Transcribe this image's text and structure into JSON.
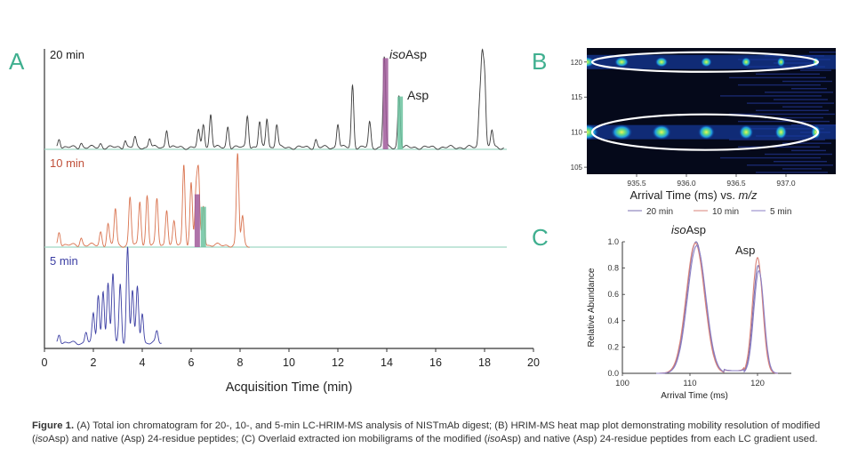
{
  "figure": {
    "panel_labels": {
      "a": "A",
      "b": "B",
      "c": "C"
    },
    "panel_a": {
      "trace_labels": [
        "20 min",
        "10 min",
        "5 min"
      ],
      "trace_colors": [
        "#3a3a3a",
        "#d9734f",
        "#3b3ea3"
      ],
      "baseline_color": "#9fd6c4",
      "peak_labels": {
        "iso_prefix": "iso",
        "iso_suffix": "Asp",
        "asp": "Asp"
      },
      "highlight_colors": {
        "isoasp": "#a05a9a",
        "asp": "#6cc3a0"
      }
    },
    "panel_b": {
      "legend": [
        "— 20 min",
        "— 10 min",
        "— 5 min"
      ]
    },
    "panel_c": {
      "peak_labels": {
        "iso_prefix": "iso",
        "iso_suffix": "Asp",
        "asp": "Asp"
      }
    },
    "caption": {
      "label": "Figure 1.",
      "parts": [
        " (A) Total ion chromatogram for 20-, 10-, and 5-min LC-HRIM-MS analysis of NISTmAb digest; (B) HRIM-MS heat map plot demonstrating mobility resolution of modified (",
        "iso",
        "Asp) and native (Asp) 24-residue peptides; (C) Overlaid extracted ion mobiligrams of the modified (",
        "iso",
        "Asp) and native (Asp) 24-residue peptides from each LC gradient used."
      ]
    }
  },
  "chart_data": [
    {
      "type": "line",
      "xlabel": "Acquisition Time (min)",
      "xlim": [
        0,
        20
      ],
      "xticks": [
        0,
        2,
        4,
        6,
        8,
        10,
        12,
        14,
        16,
        18,
        20
      ],
      "grid": false,
      "series": [
        {
          "name": "20 min",
          "x_range": [
            0.5,
            18.8
          ],
          "peaks": [
            [
              0.6,
              0.1
            ],
            [
              1.5,
              0.05
            ],
            [
              2.3,
              0.04
            ],
            [
              3.3,
              0.08
            ],
            [
              3.7,
              0.1
            ],
            [
              4.3,
              0.1
            ],
            [
              5.0,
              0.19
            ],
            [
              6.3,
              0.17
            ],
            [
              6.5,
              0.25
            ],
            [
              6.8,
              0.35
            ],
            [
              7.5,
              0.22
            ],
            [
              8.3,
              0.34
            ],
            [
              8.8,
              0.26
            ],
            [
              9.1,
              0.31
            ],
            [
              9.5,
              0.24
            ],
            [
              11.1,
              0.08
            ],
            [
              12.0,
              0.25
            ],
            [
              12.6,
              0.65
            ],
            [
              13.3,
              0.26
            ],
            [
              13.9,
              0.95
            ],
            [
              14.5,
              0.55
            ],
            [
              17.8,
              0.44
            ],
            [
              17.9,
              0.88
            ],
            [
              18.0,
              0.72
            ],
            [
              18.3,
              0.18
            ]
          ]
        },
        {
          "name": "10 min",
          "x_range": [
            0.5,
            8.4
          ],
          "peaks": [
            [
              0.6,
              0.15
            ],
            [
              1.5,
              0.08
            ],
            [
              2.3,
              0.14
            ],
            [
              2.6,
              0.22
            ],
            [
              2.9,
              0.38
            ],
            [
              3.5,
              0.5
            ],
            [
              3.9,
              0.46
            ],
            [
              4.2,
              0.52
            ],
            [
              4.6,
              0.48
            ],
            [
              5.0,
              0.38
            ],
            [
              5.3,
              0.24
            ],
            [
              5.7,
              0.85
            ],
            [
              6.0,
              0.65
            ],
            [
              6.2,
              0.55
            ],
            [
              6.3,
              0.72
            ],
            [
              6.5,
              0.42
            ],
            [
              7.9,
              0.95
            ],
            [
              8.1,
              0.3
            ]
          ]
        },
        {
          "name": "5 min",
          "x_range": [
            0.5,
            4.8
          ],
          "peaks": [
            [
              0.6,
              0.1
            ],
            [
              1.7,
              0.12
            ],
            [
              2.0,
              0.3
            ],
            [
              2.2,
              0.5
            ],
            [
              2.4,
              0.55
            ],
            [
              2.6,
              0.62
            ],
            [
              2.8,
              0.72
            ],
            [
              3.1,
              0.62
            ],
            [
              3.4,
              1.0
            ],
            [
              3.6,
              0.55
            ],
            [
              3.8,
              0.58
            ],
            [
              4.0,
              0.32
            ],
            [
              4.6,
              0.12
            ]
          ]
        }
      ],
      "highlights": [
        {
          "label": "isoAsp",
          "trace": "20 min",
          "x": 13.95
        },
        {
          "label": "Asp",
          "trace": "20 min",
          "x": 14.55
        },
        {
          "label": "isoAsp",
          "trace": "10 min",
          "x": 6.25
        },
        {
          "label": "Asp",
          "trace": "10 min",
          "x": 6.5
        }
      ]
    },
    {
      "type": "heatmap",
      "xlabel_prefix": "Arrival Time (ms) vs. ",
      "xlabel_var": "m/z",
      "xticks": [
        "935.5",
        "936.0",
        "936.5",
        "937.0"
      ],
      "xlim": [
        935.0,
        937.5
      ],
      "ylim": [
        104,
        122
      ],
      "yticks": [
        105,
        110,
        115,
        120
      ],
      "bands": [
        {
          "y": 120,
          "blobs": [
            935.0,
            935.35,
            935.75,
            936.2,
            936.6,
            936.95,
            937.3
          ]
        },
        {
          "y": 110,
          "blobs": [
            935.0,
            935.35,
            935.75,
            936.2,
            936.6,
            936.95,
            937.3
          ]
        }
      ]
    },
    {
      "type": "line",
      "xlabel": "Arrival Time (ms)",
      "ylabel": "Relative Abundance",
      "xlim": [
        100,
        125
      ],
      "ylim": [
        0,
        1.0
      ],
      "xticks": [
        100,
        110,
        120
      ],
      "yticks": [
        "0.0",
        "0.2",
        "0.4",
        "0.6",
        "0.8",
        "1.0"
      ],
      "series": [
        {
          "name": "20 min",
          "color": "#7a6fb0",
          "peaks": [
            [
              110.9,
              1.0
            ],
            [
              120.1,
              0.82
            ]
          ]
        },
        {
          "name": "10 min",
          "color": "#d9837a",
          "peaks": [
            [
              110.8,
              0.99
            ],
            [
              120.0,
              0.88
            ]
          ]
        },
        {
          "name": "5 min",
          "color": "#8b7fc4",
          "peaks": [
            [
              111.0,
              0.97
            ],
            [
              120.2,
              0.78
            ]
          ]
        }
      ]
    }
  ]
}
